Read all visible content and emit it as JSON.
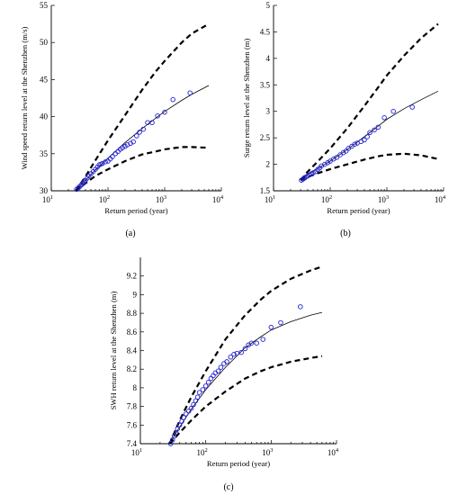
{
  "chart_data": [
    {
      "type": "line",
      "panel_label": "(a)",
      "xlabel": "Return period (year)",
      "ylabel": "Wind speed return level at the Shenzhen (m/s)",
      "x_scale": "log",
      "xlim": [
        10,
        10000
      ],
      "ylim": [
        30,
        55
      ],
      "x_ticks": [
        10,
        100,
        1000,
        10000
      ],
      "x_tick_labels": [
        "10",
        "2",
        "3",
        "4"
      ],
      "y_ticks": [
        30,
        35,
        40,
        45,
        50,
        55
      ],
      "y_tick_labels": [
        "30",
        "35",
        "40",
        "45",
        "50",
        "55"
      ],
      "series": [
        {
          "style": "line",
          "x": [
            27,
            40,
            60,
            100,
            200,
            400,
            700,
            1000,
            2000,
            3000,
            6000
          ],
          "y": [
            30.0,
            31.4,
            32.8,
            34.4,
            36.5,
            38.4,
            39.8,
            40.7,
            42.2,
            43.0,
            44.2
          ]
        },
        {
          "style": "dashed",
          "x": [
            27,
            40,
            60,
            100,
            200,
            400,
            700,
            1000,
            2000,
            3000,
            6000
          ],
          "y": [
            30.0,
            31.9,
            34.1,
            36.8,
            40.2,
            43.6,
            46.1,
            47.5,
            50.0,
            51.2,
            52.5
          ]
        },
        {
          "style": "dashed",
          "x": [
            27,
            40,
            60,
            100,
            200,
            400,
            700,
            1000,
            2000,
            3000,
            6000
          ],
          "y": [
            30.0,
            31.0,
            32.0,
            32.9,
            34.0,
            34.9,
            35.3,
            35.6,
            35.9,
            35.9,
            35.8
          ]
        },
        {
          "style": "markers",
          "x": [
            28,
            30,
            32,
            34,
            36,
            38,
            40,
            43,
            46,
            50,
            55,
            60,
            65,
            70,
            75,
            80,
            90,
            100,
            110,
            120,
            135,
            150,
            165,
            180,
            200,
            220,
            250,
            280,
            320,
            360,
            420,
            500,
            600,
            750,
            1000,
            1400,
            2800
          ],
          "y": [
            30.2,
            30.4,
            30.6,
            30.8,
            31.0,
            31.2,
            31.4,
            31.7,
            32.0,
            32.3,
            32.6,
            32.9,
            33.2,
            33.5,
            33.6,
            33.7,
            33.9,
            34.0,
            34.3,
            34.6,
            35.0,
            35.3,
            35.6,
            35.8,
            36.0,
            36.2,
            36.4,
            36.6,
            37.4,
            37.9,
            38.3,
            39.2,
            39.2,
            40.1,
            40.6,
            42.3,
            43.2
          ]
        }
      ]
    },
    {
      "type": "line",
      "panel_label": "(b)",
      "xlabel": "Return period (year)",
      "ylabel": "Surge return level at the Shenzhen (m)",
      "x_scale": "log",
      "xlim": [
        10,
        10000
      ],
      "ylim": [
        1.5,
        5
      ],
      "x_ticks": [
        10,
        100,
        1000,
        10000
      ],
      "x_tick_labels": [
        "10",
        "2",
        "3",
        "4"
      ],
      "y_ticks": [
        1.5,
        2,
        2.5,
        3,
        3.5,
        4,
        4.5,
        5
      ],
      "y_tick_labels": [
        "1.5",
        "2",
        "2.5",
        "3",
        "3.5",
        "4",
        "4.5",
        "5"
      ],
      "series": [
        {
          "style": "line",
          "x": [
            30,
            40,
            60,
            100,
            200,
            400,
            700,
            1000,
            2000,
            4000,
            8000
          ],
          "y": [
            1.7,
            1.8,
            1.92,
            2.06,
            2.28,
            2.52,
            2.72,
            2.85,
            3.05,
            3.22,
            3.38
          ]
        },
        {
          "style": "dashed",
          "x": [
            30,
            40,
            60,
            100,
            200,
            400,
            700,
            1000,
            2000,
            4000,
            8000
          ],
          "y": [
            1.7,
            1.86,
            2.05,
            2.3,
            2.68,
            3.1,
            3.45,
            3.68,
            4.05,
            4.38,
            4.65
          ]
        },
        {
          "style": "dashed",
          "x": [
            30,
            40,
            60,
            100,
            200,
            400,
            700,
            1000,
            2000,
            4000,
            8000
          ],
          "y": [
            1.7,
            1.76,
            1.83,
            1.91,
            2.0,
            2.09,
            2.15,
            2.18,
            2.2,
            2.17,
            2.1
          ]
        },
        {
          "style": "markers",
          "x": [
            31,
            33,
            35,
            37,
            40,
            43,
            46,
            50,
            55,
            60,
            65,
            70,
            80,
            90,
            100,
            115,
            130,
            150,
            170,
            190,
            210,
            240,
            270,
            300,
            350,
            400,
            450,
            500,
            600,
            700,
            900,
            1300,
            2800
          ],
          "y": [
            1.7,
            1.72,
            1.74,
            1.76,
            1.78,
            1.8,
            1.82,
            1.84,
            1.86,
            1.9,
            1.93,
            1.97,
            2.0,
            2.03,
            2.06,
            2.1,
            2.13,
            2.18,
            2.22,
            2.25,
            2.3,
            2.34,
            2.38,
            2.4,
            2.43,
            2.46,
            2.52,
            2.6,
            2.65,
            2.7,
            2.88,
            3.0,
            3.08
          ]
        }
      ]
    },
    {
      "type": "line",
      "panel_label": "(c)",
      "xlabel": "Return period (year)",
      "ylabel": "SWH return level at the Shenzhen (m)",
      "x_scale": "log",
      "xlim": [
        10,
        10000
      ],
      "ylim": [
        7.4,
        9.4
      ],
      "x_ticks": [
        10,
        100,
        1000,
        10000
      ],
      "x_tick_labels": [
        "10",
        "2",
        "3",
        "4"
      ],
      "y_ticks": [
        7.4,
        7.6,
        7.8,
        8.0,
        8.2,
        8.4,
        8.6,
        8.8,
        9.0,
        9.2
      ],
      "y_tick_labels": [
        "7.4",
        "7.6",
        "7.8",
        "8",
        "8.2",
        "8.4",
        "8.6",
        "8.8",
        "9",
        "9.2"
      ],
      "series": [
        {
          "style": "line",
          "x": [
            28,
            40,
            60,
            100,
            200,
            400,
            700,
            1000,
            2000,
            4000,
            6000
          ],
          "y": [
            7.4,
            7.58,
            7.77,
            7.98,
            8.22,
            8.43,
            8.55,
            8.62,
            8.71,
            8.78,
            8.81
          ]
        },
        {
          "style": "dashed",
          "x": [
            28,
            40,
            60,
            100,
            200,
            400,
            700,
            1000,
            2000,
            4000,
            6000
          ],
          "y": [
            7.4,
            7.65,
            7.9,
            8.18,
            8.52,
            8.78,
            8.95,
            9.04,
            9.17,
            9.26,
            9.3
          ]
        },
        {
          "style": "dashed",
          "x": [
            28,
            40,
            60,
            100,
            200,
            400,
            700,
            1000,
            2000,
            4000,
            6000
          ],
          "y": [
            7.4,
            7.52,
            7.65,
            7.8,
            7.96,
            8.1,
            8.18,
            8.22,
            8.28,
            8.32,
            8.34
          ]
        },
        {
          "style": "markers",
          "x": [
            29,
            31,
            33,
            35,
            37,
            40,
            43,
            46,
            50,
            55,
            60,
            65,
            70,
            75,
            80,
            90,
            100,
            110,
            120,
            130,
            140,
            155,
            170,
            190,
            210,
            240,
            270,
            300,
            350,
            400,
            450,
            500,
            600,
            750,
            1000,
            1400,
            2800
          ],
          "y": [
            7.4,
            7.44,
            7.48,
            7.52,
            7.56,
            7.6,
            7.64,
            7.68,
            7.72,
            7.75,
            7.78,
            7.82,
            7.86,
            7.9,
            7.95,
            7.98,
            8.02,
            8.06,
            8.1,
            8.13,
            8.16,
            8.18,
            8.22,
            8.26,
            8.28,
            8.33,
            8.36,
            8.37,
            8.38,
            8.42,
            8.46,
            8.48,
            8.48,
            8.52,
            8.65,
            8.7,
            8.87
          ]
        }
      ]
    }
  ]
}
